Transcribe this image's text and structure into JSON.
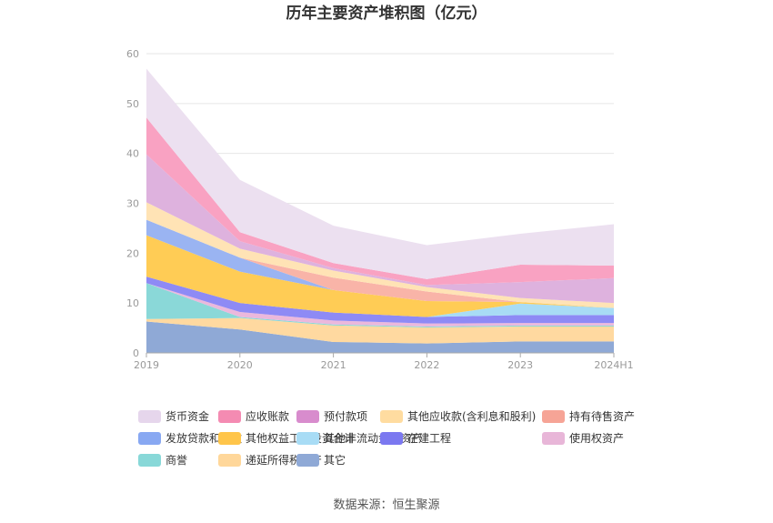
{
  "chart_data": {
    "type": "area",
    "stacked": true,
    "title": "历年主要资产堆积图（亿元）",
    "x": [
      "2019",
      "2020",
      "2021",
      "2022",
      "2023",
      "2024H1"
    ],
    "ylim": [
      0,
      60
    ],
    "yticks": [
      0,
      10,
      20,
      30,
      40,
      50,
      60
    ],
    "grid": true,
    "legend_position": "bottom",
    "series": [
      {
        "name": "其它",
        "color": "#8fa9d6",
        "values": [
          6.3,
          4.7,
          2.2,
          1.9,
          2.3,
          2.3
        ]
      },
      {
        "name": "递延所得税资产",
        "color": "#ffd9a0",
        "values": [
          0.5,
          2.3,
          3.3,
          3.2,
          3.0,
          3.0
        ]
      },
      {
        "name": "商誉",
        "color": "#8ad8d8",
        "values": [
          7.2,
          0.2,
          0.2,
          0.2,
          0.2,
          0.2
        ]
      },
      {
        "name": "使用权资产",
        "color": "#ebb8dc",
        "values": [
          0.0,
          1.0,
          0.8,
          0.6,
          0.5,
          0.5
        ]
      },
      {
        "name": "在建工程",
        "color": "#8e8af5",
        "values": [
          1.3,
          1.8,
          1.6,
          1.3,
          1.6,
          1.6
        ]
      },
      {
        "name": "其他非流动金融资产",
        "color": "#a8dcf5",
        "values": [
          0.0,
          0.0,
          0.0,
          0.0,
          2.3,
          1.4
        ]
      },
      {
        "name": "其他权益工具投资合计",
        "color": "#ffcc55",
        "values": [
          8.3,
          6.3,
          4.5,
          3.2,
          0.3,
          0.0
        ]
      },
      {
        "name": "发放贷款和垫款",
        "color": "#9ab4f2",
        "values": [
          3.1,
          2.8,
          0.0,
          0.0,
          0.0,
          0.0
        ]
      },
      {
        "name": "持有待售资产",
        "color": "#f9b4a8",
        "values": [
          0.0,
          0.0,
          2.5,
          1.9,
          0.0,
          0.0
        ]
      },
      {
        "name": "其他应收款(含利息和股利)",
        "color": "#ffe3b5",
        "values": [
          3.5,
          1.8,
          1.4,
          0.9,
          0.8,
          1.0
        ]
      },
      {
        "name": "预付款项",
        "color": "#deb2de",
        "values": [
          9.6,
          1.5,
          0.5,
          0.4,
          3.2,
          5.0
        ]
      },
      {
        "name": "应收账款",
        "color": "#f9a2c2",
        "values": [
          7.4,
          1.8,
          1.0,
          1.2,
          3.5,
          2.5
        ]
      },
      {
        "name": "货币资金",
        "color": "#ece0f0",
        "values": [
          9.8,
          10.5,
          7.5,
          6.8,
          6.2,
          8.3
        ]
      }
    ],
    "legend_order": [
      "货币资金",
      "应收账款",
      "预付款项",
      "其他应收款(含利息和股利)",
      "持有待售资产",
      "发放贷款和垫款",
      "其他权益工具投资合计",
      "其他非流动金融资产",
      "在建工程",
      "使用权资产",
      "商誉",
      "递延所得税资产",
      "其它"
    ],
    "legend_colors": {
      "货币资金": "#e6d6ec",
      "应收账款": "#f48bb2",
      "预付款项": "#d88ccd",
      "其他应收款(含利息和股利)": "#ffdca0",
      "持有待售资产": "#f6a496",
      "发放贷款和垫款": "#88a8f2",
      "其他权益工具投资合计": "#ffc54a",
      "其他非流动金融资产": "#a8dcf5",
      "在建工程": "#7b78f0",
      "使用权资产": "#e8b6d8",
      "商誉": "#88d8d8",
      "递延所得税资产": "#ffd79a",
      "其它": "#8fa9d6"
    }
  },
  "source_text": "数据来源：恒生聚源"
}
